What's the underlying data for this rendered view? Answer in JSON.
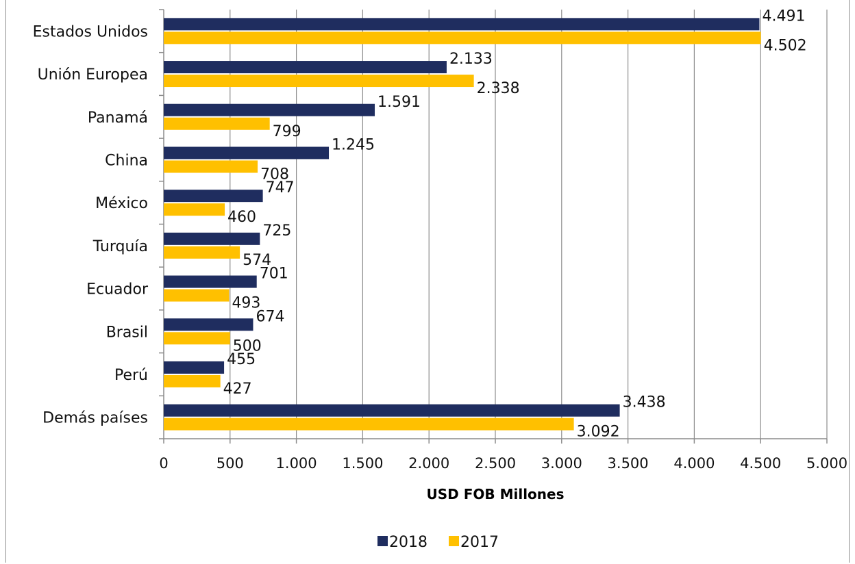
{
  "chart_data": {
    "type": "bar",
    "orientation": "horizontal",
    "categories": [
      "Estados Unidos",
      "Unión Europea",
      "Panamá",
      "China",
      "México",
      "Turquía",
      "Ecuador",
      "Brasil",
      "Perú",
      "Demás países"
    ],
    "series": [
      {
        "name": "2018",
        "color": "#1f2d5f",
        "values": [
          4491,
          2133,
          1591,
          1245,
          747,
          725,
          701,
          674,
          455,
          3438
        ],
        "labels": [
          "4.491",
          "2.133",
          "1.591",
          "1.245",
          "747",
          "725",
          "701",
          "674",
          "455",
          "3.438"
        ]
      },
      {
        "name": "2017",
        "color": "#ffc000",
        "values": [
          4502,
          2338,
          799,
          708,
          460,
          574,
          493,
          500,
          427,
          3092
        ],
        "labels": [
          "4.502",
          "2.338",
          "799",
          "708",
          "460",
          "574",
          "493",
          "500",
          "427",
          "3.092"
        ]
      }
    ],
    "xlabel": "USD FOB Millones",
    "xlim": [
      0,
      5000
    ],
    "xticks": [
      0,
      500,
      1000,
      1500,
      2000,
      2500,
      3000,
      3500,
      4000,
      4500,
      5000
    ],
    "xtick_labels": [
      "0",
      "500",
      "1.000",
      "1.500",
      "2.000",
      "2.500",
      "3.000",
      "3.500",
      "4.000",
      "4.500",
      "5.000"
    ],
    "grid": "vertical",
    "legend": "bottom-center"
  }
}
